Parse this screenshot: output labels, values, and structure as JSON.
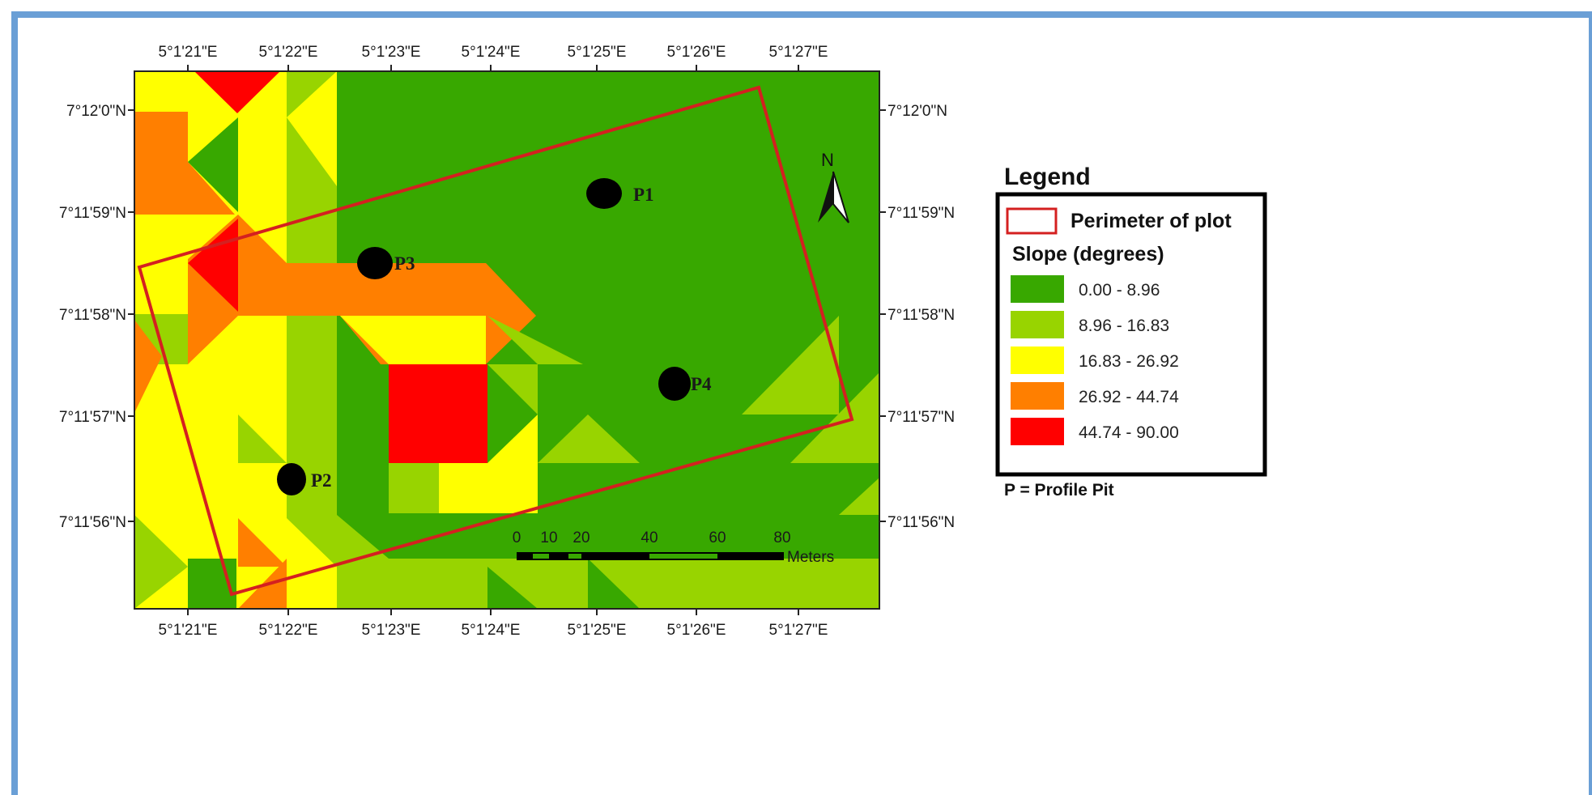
{
  "map": {
    "x_ticks": [
      "5°1'21\"E",
      "5°1'22\"E",
      "5°1'23\"E",
      "5°1'24\"E",
      "5°1'25\"E",
      "5°1'26\"E",
      "5°1'27\"E"
    ],
    "y_ticks": [
      "7°12'0\"N",
      "7°11'59\"N",
      "7°11'58\"N",
      "7°11'57\"N",
      "7°11'56\"N"
    ],
    "profile_pits": [
      {
        "label": "P1"
      },
      {
        "label": "P2"
      },
      {
        "label": "P3"
      },
      {
        "label": "P4"
      }
    ],
    "north_arrow": "N",
    "scale_bar": {
      "ticks": [
        "0",
        "10",
        "20",
        "40",
        "60",
        "80"
      ],
      "unit": "Meters"
    }
  },
  "legend": {
    "title": "Legend",
    "perimeter_label": "Perimeter of plot",
    "slope_title": "Slope (degrees)",
    "classes": [
      {
        "label": "0.00 - 8.96",
        "color": "#38a800"
      },
      {
        "label": "8.96 - 16.83",
        "color": "#98d400"
      },
      {
        "label": "16.83 - 26.92",
        "color": "#ffff00"
      },
      {
        "label": "26.92 - 44.74",
        "color": "#ff7f00"
      },
      {
        "label": "44.74 - 90.00",
        "color": "#ff0000"
      }
    ],
    "note": "P = Profile Pit"
  },
  "colors": {
    "frame_border": "#6a9fd6",
    "perimeter": "#d42020"
  }
}
